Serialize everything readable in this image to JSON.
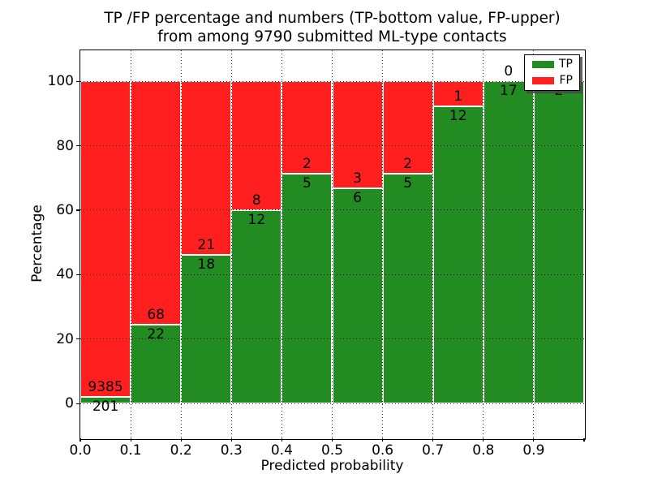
{
  "figure": {
    "title_line1": "TP /FP percentage and numbers (TP-bottom value, FP-upper)",
    "title_line2": "from among 9790 submitted ML-type contacts",
    "xlabel": "Predicted probability",
    "ylabel": "Percentage"
  },
  "legend": {
    "position": "upper right",
    "items": [
      {
        "label": "TP",
        "color": "#228b22"
      },
      {
        "label": "FP",
        "color": "#ff1f1f"
      }
    ]
  },
  "chart_data": {
    "type": "bar",
    "stacked": true,
    "normalized": "each bin scaled to 100%",
    "title": "TP /FP percentage and numbers (TP-bottom value, FP-upper) from among 9790 submitted ML-type contacts",
    "xlabel": "Predicted probability",
    "ylabel": "Percentage",
    "total_contacts": 9790,
    "bin_width": 0.1,
    "bin_starts": [
      0.0,
      0.1,
      0.2,
      0.3,
      0.4,
      0.5,
      0.6,
      0.7,
      0.8,
      0.9
    ],
    "x_tick_labels": [
      "0.0",
      "0.1",
      "0.2",
      "0.3",
      "0.4",
      "0.5",
      "0.6",
      "0.7",
      "0.8",
      "0.9"
    ],
    "y_ticks": [
      0,
      20,
      40,
      60,
      80,
      100
    ],
    "y_tick_labels": [
      "0",
      "20",
      "40",
      "60",
      "80",
      "100"
    ],
    "xlim": [
      0.0,
      1.0
    ],
    "ylim": [
      -10.8,
      109.6
    ],
    "grid": "dotted black, drawn above bars",
    "legend_position": "upper right",
    "series": [
      {
        "name": "TP",
        "color": "#228b22",
        "counts": [
          201,
          22,
          18,
          12,
          5,
          6,
          5,
          12,
          17,
          2
        ]
      },
      {
        "name": "FP",
        "color": "#ff1f1f",
        "counts": [
          9385,
          68,
          21,
          8,
          2,
          3,
          2,
          1,
          0,
          0
        ]
      }
    ],
    "tp_percent_of_bin": [
      2.1,
      24.4,
      46.2,
      60.0,
      71.4,
      66.7,
      71.4,
      92.3,
      100.0,
      100.0
    ]
  }
}
